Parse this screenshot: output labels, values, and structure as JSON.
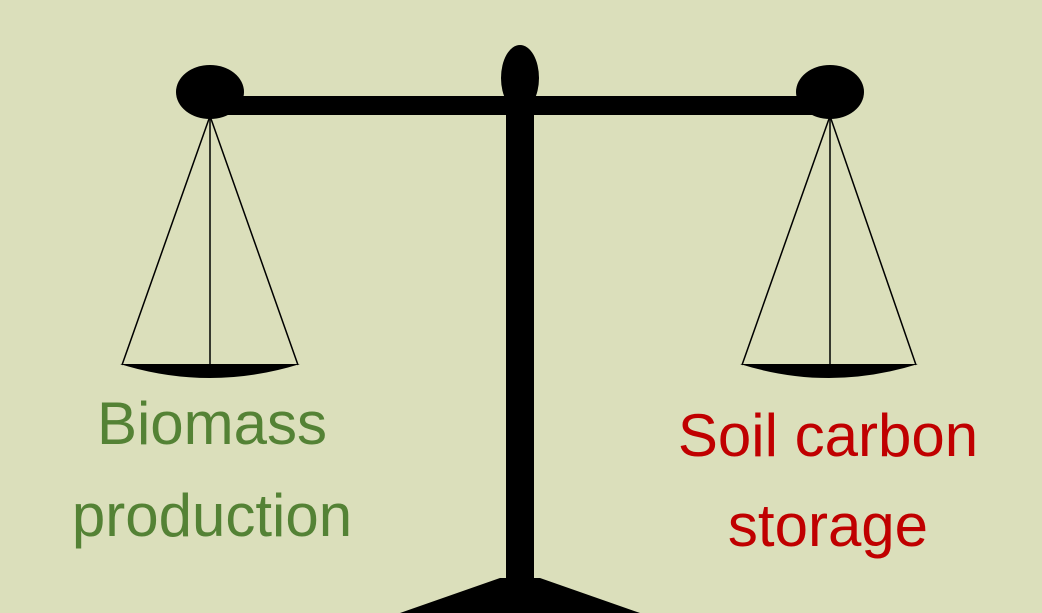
{
  "left_label": {
    "lines": [
      "Biomass",
      "production"
    ]
  },
  "right_label": {
    "lines": [
      "Soil carbon",
      "storage"
    ]
  }
}
